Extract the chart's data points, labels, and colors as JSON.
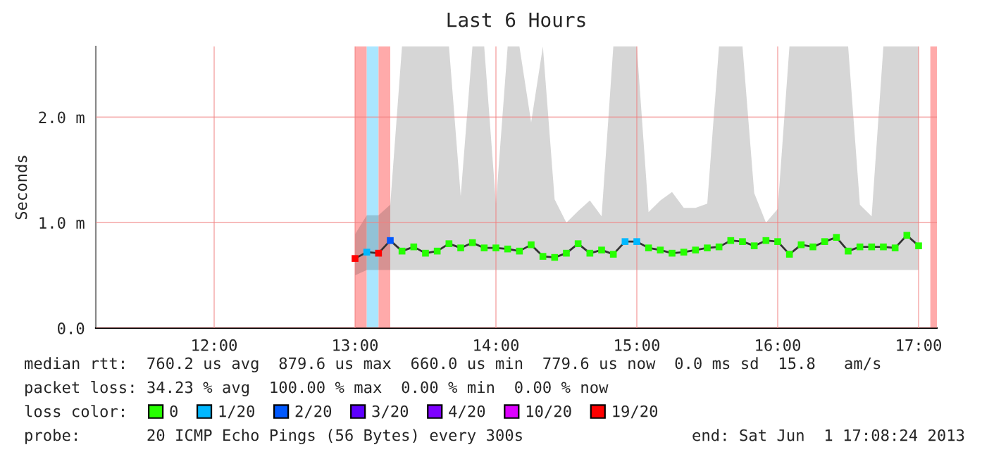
{
  "chart_data": {
    "type": "line",
    "title": "Last 6 Hours",
    "ylabel": "Seconds",
    "legend_title": "loss color:",
    "legend": "bottom",
    "grid": true,
    "x": [
      13,
      13.0833,
      13.1667,
      13.25,
      13.3333,
      13.4167,
      13.5,
      13.5833,
      13.6667,
      13.75,
      13.8333,
      13.9167,
      14,
      14.0833,
      14.1667,
      14.25,
      14.3333,
      14.4167,
      14.5,
      14.5833,
      14.6667,
      14.75,
      14.8333,
      14.9167,
      15,
      15.0833,
      15.1667,
      15.25,
      15.3333,
      15.4167,
      15.5,
      15.5833,
      15.6667,
      15.75,
      15.8333,
      15.9167,
      16,
      16.0833,
      16.1667,
      16.25,
      16.3333,
      16.4167,
      16.5,
      16.5833,
      16.6667,
      16.75,
      16.8333,
      16.9167,
      17
    ],
    "xlim": [
      11.16,
      17.13
    ],
    "xticks": [
      {
        "value": 12,
        "label": "12:00"
      },
      {
        "value": 13,
        "label": "13:00"
      },
      {
        "value": 14,
        "label": "14:00"
      },
      {
        "value": 15,
        "label": "15:00"
      },
      {
        "value": 16,
        "label": "16:00"
      },
      {
        "value": 17,
        "label": "17:00"
      }
    ],
    "ylim": [
      0,
      2.67
    ],
    "yticks": [
      {
        "value": 0,
        "label": "0.0"
      },
      {
        "value": 1,
        "label": "1.0 m"
      },
      {
        "value": 2,
        "label": "2.0 m"
      }
    ],
    "series": [
      {
        "color": "#333333",
        "values": [
          0.66,
          0.72,
          0.71,
          0.83,
          0.73,
          0.77,
          0.71,
          0.73,
          0.8,
          0.76,
          0.81,
          0.76,
          0.76,
          0.75,
          0.73,
          0.79,
          0.68,
          0.67,
          0.71,
          0.8,
          0.71,
          0.74,
          0.7,
          0.82,
          0.82,
          0.76,
          0.74,
          0.71,
          0.72,
          0.74,
          0.76,
          0.77,
          0.83,
          0.82,
          0.78,
          0.83,
          0.82,
          0.7,
          0.79,
          0.77,
          0.82,
          0.86,
          0.73,
          0.77,
          0.77,
          0.77,
          0.76,
          0.88,
          0.78
        ],
        "lower": [
          0.5,
          0.55,
          0.55,
          0.55,
          0.55,
          0.55,
          0.55,
          0.55,
          0.55,
          0.55,
          0.55,
          0.55,
          0.55,
          0.55,
          0.55,
          0.55,
          0.55,
          0.55,
          0.55,
          0.55,
          0.55,
          0.55,
          0.55,
          0.55,
          0.55,
          0.55,
          0.55,
          0.55,
          0.55,
          0.55,
          0.55,
          0.55,
          0.55,
          0.55,
          0.55,
          0.55,
          0.55,
          0.55,
          0.55,
          0.55,
          0.55,
          0.55,
          0.55,
          0.55,
          0.55,
          0.55,
          0.55,
          0.55,
          0.55
        ],
        "upper": [
          0.89,
          1.07,
          1.07,
          1.17,
          2.67,
          2.67,
          2.67,
          2.67,
          2.67,
          1.25,
          2.67,
          2.67,
          1.18,
          2.67,
          2.67,
          1.95,
          2.67,
          1.22,
          1.0,
          1.11,
          1.21,
          1.06,
          2.67,
          2.67,
          2.67,
          1.1,
          1.21,
          1.29,
          1.14,
          1.14,
          1.18,
          2.67,
          2.67,
          2.67,
          1.28,
          1.0,
          1.13,
          2.67,
          2.67,
          2.67,
          2.67,
          2.67,
          2.67,
          1.17,
          1.06,
          2.67,
          2.67,
          2.67,
          2.67
        ]
      },
      {
        "name": "0",
        "color": "#26ff00",
        "type": "scatter",
        "marker": "square",
        "values": [
          null,
          null,
          null,
          null,
          0.73,
          0.77,
          0.71,
          0.73,
          0.8,
          0.76,
          0.81,
          0.76,
          0.76,
          0.75,
          0.73,
          0.79,
          0.68,
          0.67,
          0.71,
          0.8,
          0.71,
          0.74,
          0.7,
          null,
          null,
          0.76,
          0.74,
          0.71,
          0.72,
          0.74,
          0.76,
          0.77,
          0.83,
          0.82,
          0.78,
          0.83,
          0.82,
          0.7,
          0.79,
          0.77,
          0.82,
          0.86,
          0.73,
          0.77,
          0.77,
          0.77,
          0.76,
          0.88,
          0.78
        ]
      },
      {
        "name": "1/20",
        "color": "#00b8ff",
        "type": "scatter",
        "marker": "square",
        "values": [
          null,
          0.72,
          null,
          null,
          null,
          null,
          null,
          null,
          null,
          null,
          null,
          null,
          null,
          null,
          null,
          null,
          null,
          null,
          null,
          null,
          null,
          null,
          null,
          0.82,
          0.82,
          null,
          null,
          null,
          null,
          null,
          null,
          null,
          null,
          null,
          null,
          null,
          null,
          null,
          null,
          null,
          null,
          null,
          null,
          null,
          null,
          null,
          null,
          null,
          null
        ]
      },
      {
        "name": "2/20",
        "color": "#0059ff",
        "type": "scatter",
        "marker": "square",
        "values": [
          null,
          null,
          null,
          0.83,
          null,
          null,
          null,
          null,
          null,
          null,
          null,
          null,
          null,
          null,
          null,
          null,
          null,
          null,
          null,
          null,
          null,
          null,
          null,
          null,
          null,
          null,
          null,
          null,
          null,
          null,
          null,
          null,
          null,
          null,
          null,
          null,
          null,
          null,
          null,
          null,
          null,
          null,
          null,
          null,
          null,
          null,
          null,
          null,
          null
        ]
      },
      {
        "name": "3/20",
        "color": "#5e00ff",
        "type": "scatter",
        "marker": "square",
        "values": [
          null,
          null,
          null,
          null,
          null,
          null,
          null,
          null,
          null,
          null,
          null,
          null,
          null,
          null,
          null,
          null,
          null,
          null,
          null,
          null,
          null,
          null,
          null,
          null,
          null,
          null,
          null,
          null,
          null,
          null,
          null,
          null,
          null,
          null,
          null,
          null,
          null,
          null,
          null,
          null,
          null,
          null,
          null,
          null,
          null,
          null,
          null,
          null,
          null
        ]
      },
      {
        "name": "4/20",
        "color": "#7e00ff",
        "type": "scatter",
        "marker": "square",
        "values": [
          null,
          null,
          null,
          null,
          null,
          null,
          null,
          null,
          null,
          null,
          null,
          null,
          null,
          null,
          null,
          null,
          null,
          null,
          null,
          null,
          null,
          null,
          null,
          null,
          null,
          null,
          null,
          null,
          null,
          null,
          null,
          null,
          null,
          null,
          null,
          null,
          null,
          null,
          null,
          null,
          null,
          null,
          null,
          null,
          null,
          null,
          null,
          null,
          null
        ]
      },
      {
        "name": "10/20",
        "color": "#dd00ff",
        "type": "scatter",
        "marker": "square",
        "values": [
          null,
          null,
          null,
          null,
          null,
          null,
          null,
          null,
          null,
          null,
          null,
          null,
          null,
          null,
          null,
          null,
          null,
          null,
          null,
          null,
          null,
          null,
          null,
          null,
          null,
          null,
          null,
          null,
          null,
          null,
          null,
          null,
          null,
          null,
          null,
          null,
          null,
          null,
          null,
          null,
          null,
          null,
          null,
          null,
          null,
          null,
          null,
          null,
          null
        ]
      },
      {
        "name": "19/20",
        "color": "#ff0000",
        "type": "scatter",
        "marker": "square",
        "values": [
          0.66,
          null,
          0.71,
          null,
          null,
          null,
          null,
          null,
          null,
          null,
          null,
          null,
          null,
          null,
          null,
          null,
          null,
          null,
          null,
          null,
          null,
          null,
          null,
          null,
          null,
          null,
          null,
          null,
          null,
          null,
          null,
          null,
          null,
          null,
          null,
          null,
          null,
          null,
          null,
          null,
          null,
          null,
          null,
          null,
          null,
          null,
          null,
          null,
          null
        ]
      }
    ],
    "bands": [
      {
        "axis": "x",
        "from": 13,
        "to": 13.0833,
        "color": "#ffaaaa"
      },
      {
        "axis": "x",
        "from": 13.0833,
        "to": 13.1667,
        "color": "#aae6ff"
      },
      {
        "axis": "x",
        "from": 13.1667,
        "to": 13.25,
        "color": "#ffaaaa"
      },
      {
        "axis": "x",
        "from": 17.0833,
        "to": 17.13,
        "color": "#ffaaaa"
      }
    ],
    "annotations": [
      "median rtt:  760.2 us avg  879.6 us max  660.0 us min  779.6 us now  0.0 ms sd  15.8   am/s",
      "packet loss: 34.23 % avg  100.00 % max  0.00 % min  0.00 % now",
      "probe:       20 ICMP Echo Pings (56 Bytes) every 300s",
      "end: Sat Jun  1 17:08:24 2013"
    ]
  }
}
